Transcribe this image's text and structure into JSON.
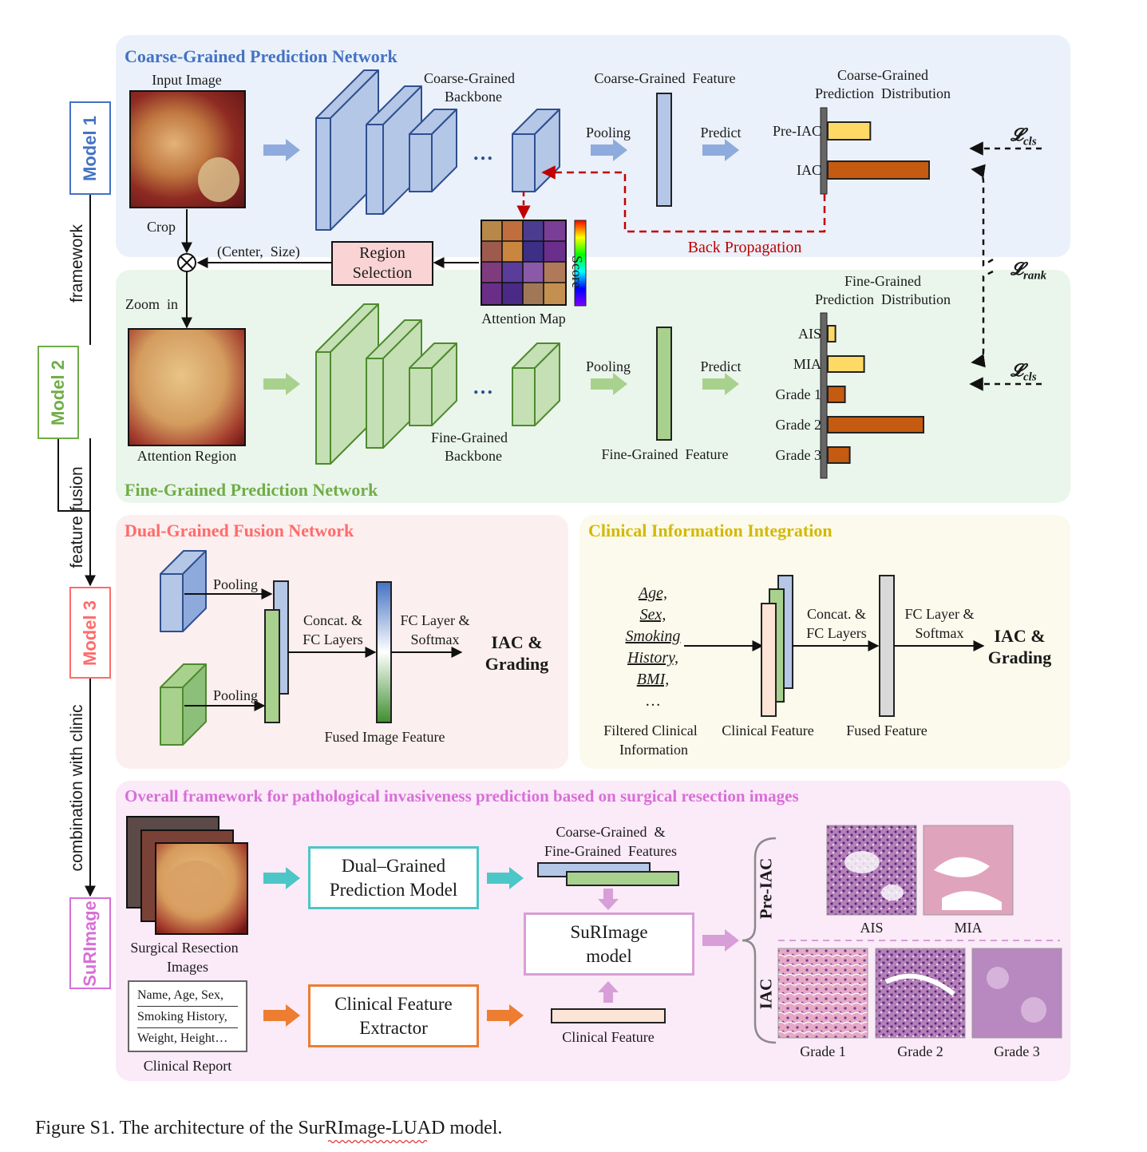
{
  "side": {
    "models": [
      "Model 1",
      "Model 2",
      "Model 3",
      "SuRImage"
    ],
    "links": [
      "framework",
      "feature fusion",
      "combination with clinic"
    ]
  },
  "coarse": {
    "title": "Coarse-Grained Prediction Network",
    "input_label": "Input Image",
    "backbone_label": [
      "Coarse-Grained",
      "Backbone"
    ],
    "feature_label": "Coarse-Grained  Feature",
    "pooling": "Pooling",
    "predict": "Predict",
    "dist_title": [
      "Coarse-Grained",
      "Prediction  Distribution"
    ],
    "categories": [
      "Pre-IAC",
      "IAC"
    ],
    "values": [
      0.42,
      1.0
    ],
    "back_prop": "Back Propagation",
    "loss_cls": "𝓛",
    "loss_cls_sub": "cls"
  },
  "middle": {
    "crop": "Crop",
    "center_size": "(Center,  Size)",
    "region_selection": [
      "Region",
      "Selection"
    ],
    "attention_map": "Attention Map",
    "score": "Score",
    "zoom_in": "Zoom  in",
    "loss_rank": "𝓛",
    "loss_rank_sub": "rank"
  },
  "fine": {
    "title": "Fine-Grained Prediction Network",
    "attention_region": "Attention Region",
    "backbone_label": [
      "Fine-Grained",
      "Backbone"
    ],
    "feature_label": "Fine-Grained  Feature",
    "pooling": "Pooling",
    "predict": "Predict",
    "dist_title": [
      "Fine-Grained",
      "Prediction  Distribution"
    ],
    "categories": [
      "AIS",
      "MIA",
      "Grade 1",
      "Grade 2",
      "Grade 3"
    ],
    "values": [
      0.08,
      0.38,
      0.18,
      1.0,
      0.23
    ],
    "loss_cls": "𝓛",
    "loss_cls_sub": "cls"
  },
  "fusion": {
    "title": "Dual-Grained Fusion Network",
    "pooling": "Pooling",
    "concat": [
      "Concat. &",
      "FC Layers"
    ],
    "fc": [
      "FC Layer &",
      "Softmax"
    ],
    "output": [
      "IAC &",
      "Grading"
    ],
    "fused_label": "Fused Image Feature"
  },
  "clinical": {
    "title": "Clinical Information Integration",
    "items": [
      "Age,",
      "Sex,",
      "Smoking",
      "History,",
      "BMI,"
    ],
    "ellipsis": "…",
    "filtered_label": [
      "Filtered Clinical",
      "Information"
    ],
    "clinical_feature": "Clinical Feature",
    "concat": [
      "Concat. &",
      "FC Layers"
    ],
    "fc": [
      "FC Layer &",
      "Softmax"
    ],
    "fused_feature": "Fused Feature",
    "output": [
      "IAC &",
      "Grading"
    ]
  },
  "overall": {
    "title": "Overall framework for pathological invasiveness prediction based on surgical resection images",
    "images_label": [
      "Surgical Resection",
      "Images"
    ],
    "report_lines": [
      "Name, Age, Sex,",
      "Smoking History,",
      "Weight, Height…"
    ],
    "report_label": "Clinical Report",
    "dual_model": [
      "Dual–Grained",
      "Prediction Model"
    ],
    "clin_extractor": [
      "Clinical Feature",
      "Extractor"
    ],
    "features_label": [
      "Coarse-Grained  &",
      "Fine-Grained  Features"
    ],
    "clin_feature": "Clinical Feature",
    "surimage": [
      "SuRImage",
      "model"
    ],
    "pre_iac": "Pre-IAC",
    "iac": "IAC",
    "patho_labels": [
      "AIS",
      "MIA",
      "Grade 1",
      "Grade 2",
      "Grade 3"
    ]
  },
  "caption": "Figure S1. The architecture of the SurRImage-LUAD model.",
  "colors": {
    "blue": "#4472C4",
    "green": "#70AD47",
    "red": "#FF6B6B",
    "yellow": "#D4B800",
    "purple": "#D86FD8",
    "cyan": "#4CC6C6",
    "orange": "#ED7D31",
    "bar_light": "#FFD966",
    "bar_dark": "#C55A11"
  }
}
